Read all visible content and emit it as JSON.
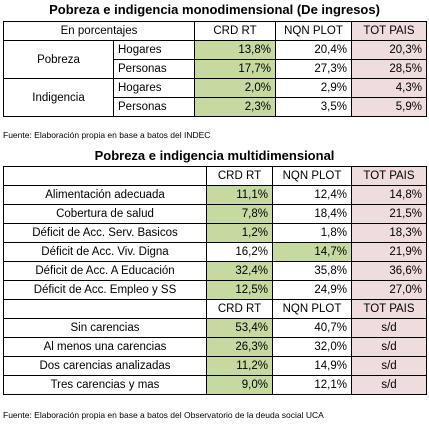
{
  "section1": {
    "title": "Pobreza e indigencia monodimensional (De ingresos)",
    "header": {
      "label": "En porcentajes",
      "col1": "CRD RT",
      "col2": "NQN PLOT",
      "col3": "TOT PAIS"
    },
    "groups": [
      {
        "name": "Pobreza",
        "rows": [
          {
            "label": "Hogares",
            "crd": "13,8%",
            "nqn": "20,4%",
            "tot": "20,3%"
          },
          {
            "label": "Personas",
            "crd": "17,7%",
            "nqn": "27,3%",
            "tot": "28,5%"
          }
        ]
      },
      {
        "name": "Indigencia",
        "rows": [
          {
            "label": "Hogares",
            "crd": "2,0%",
            "nqn": "2,9%",
            "tot": "4,3%"
          },
          {
            "label": "Personas",
            "crd": "2,3%",
            "nqn": "3,5%",
            "tot": "5,9%"
          }
        ]
      }
    ],
    "source": "Fuente: Elaboración propia en base a batos del INDEC"
  },
  "section2": {
    "title": "Pobreza e indigencia multidimensional",
    "header": {
      "col1": "CRD RT",
      "col2": "NQN PLOT",
      "col3": "TOT PAIS"
    },
    "rows": [
      {
        "label": "Alimentación adecuada",
        "crd": "11,1%",
        "nqn": "12,4%",
        "tot": "14,8%"
      },
      {
        "label": "Cobertura de salud",
        "crd": "7,8%",
        "nqn": "18,4%",
        "tot": "21,5%"
      },
      {
        "label": "Déficit de Acc. Serv. Basicos",
        "crd": "1,2%",
        "nqn": "1,8%",
        "tot": "18,3%"
      },
      {
        "label": "Déficit de Acc. Viv. Digna",
        "crd": "16,2%",
        "nqn": "14,7%",
        "tot": "21,9%"
      },
      {
        "label": "Déficit de Acc. A Educación",
        "crd": "32,4%",
        "nqn": "35,8%",
        "tot": "36,6%"
      },
      {
        "label": "Déficit de Acc. Empleo y SS",
        "crd": "12,5%",
        "nqn": "24,9%",
        "tot": "27,0%"
      }
    ],
    "header2": {
      "col1": "CRD RT",
      "col2": "NQN PLOT",
      "col3": "TOT PAIS"
    },
    "rows2": [
      {
        "label": "Sin carencias",
        "crd": "53,4%",
        "nqn": "40,7%",
        "tot": "s/d"
      },
      {
        "label": "Al menos una carencias",
        "crd": "26,3%",
        "nqn": "32,0%",
        "tot": "s/d"
      },
      {
        "label": "Dos carencias analizadas",
        "crd": "11,2%",
        "nqn": "14,9%",
        "tot": "s/d"
      },
      {
        "label": "Tres carencias y mas",
        "crd": "9,0%",
        "nqn": "12,1%",
        "tot": "s/d"
      }
    ],
    "source": "Fuente: Elaboración propia en base a batos del Observatorio de la deuda social UCA"
  },
  "colors": {
    "green": "#c5d9a0",
    "pink": "#efdcdc"
  }
}
